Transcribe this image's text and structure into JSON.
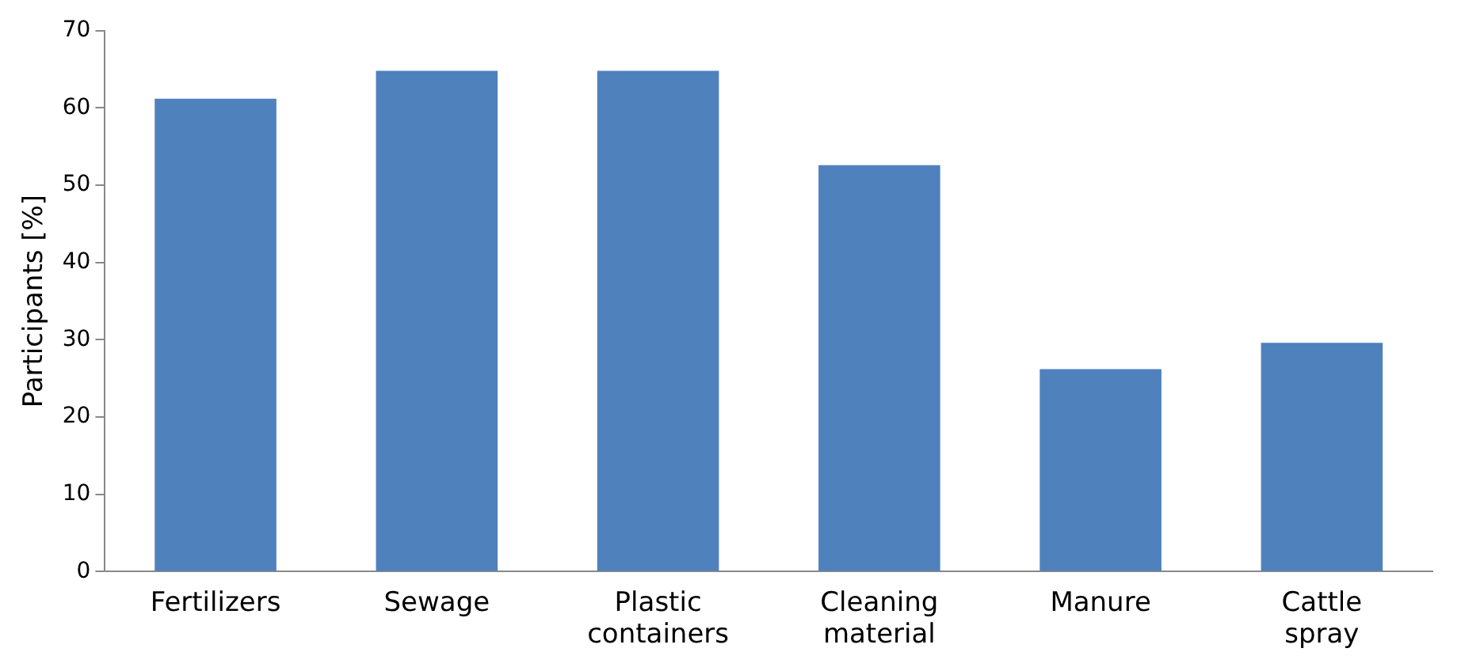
{
  "chart_data": {
    "type": "bar",
    "ylabel": "Participants [%]",
    "categories": [
      "Fertilizers",
      "Sewage",
      "Plastic containers",
      "Cleaning material",
      "Manure",
      "Cattle spray"
    ],
    "values": [
      61.2,
      64.8,
      64.8,
      52.6,
      26.2,
      29.6
    ],
    "color": "#4f81bd",
    "ylim": [
      0,
      70
    ],
    "yticks": [
      0,
      10,
      20,
      30,
      40,
      50,
      60,
      70
    ],
    "grid": false
  }
}
